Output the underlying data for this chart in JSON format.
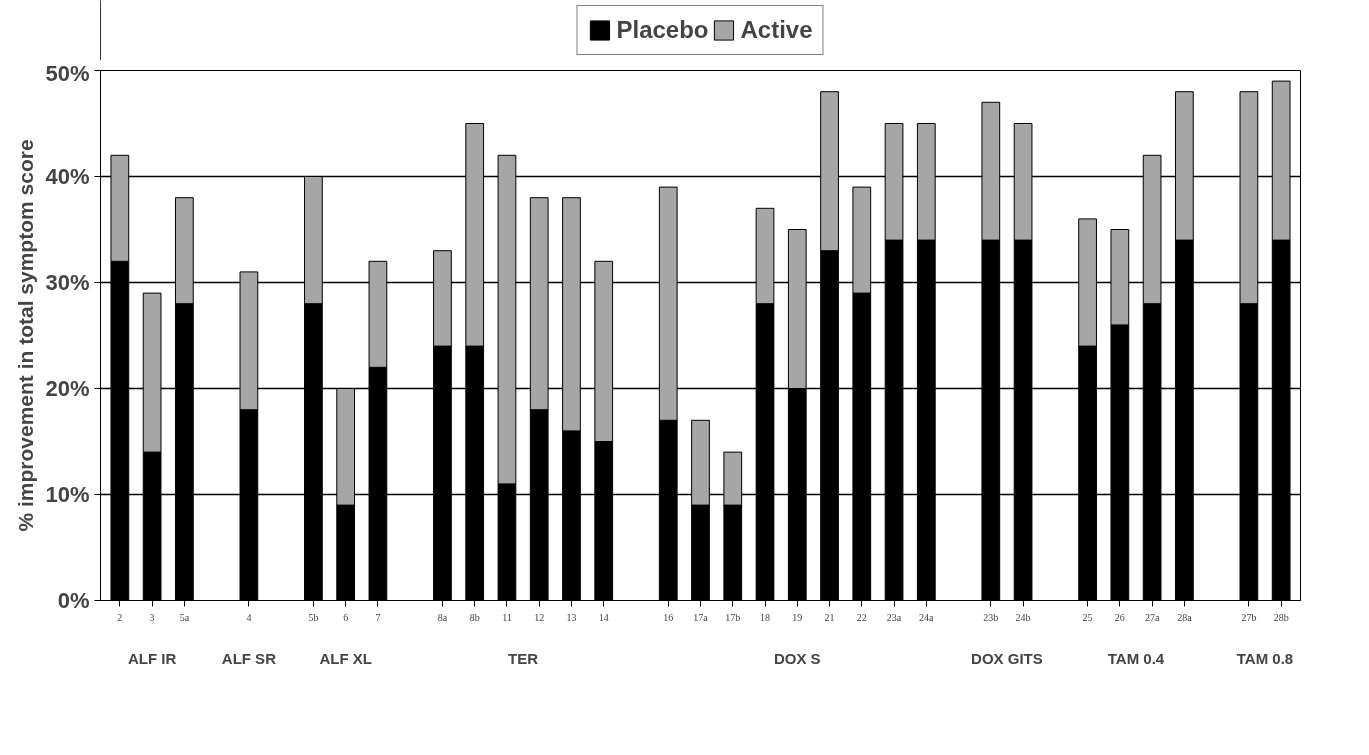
{
  "chart_data": {
    "type": "bar",
    "stacked": true,
    "ylabel": "% improvement in total symptom score",
    "categories": [
      "2",
      "3",
      "5a",
      null,
      "4",
      null,
      "5b",
      "6",
      "7",
      null,
      "8a",
      "8b",
      "11",
      "12",
      "13",
      "14",
      null,
      "16",
      "17a",
      "17b",
      "18",
      "19",
      "21",
      "22",
      "23a",
      "24a",
      null,
      "23b",
      "24b",
      null,
      "25",
      "26",
      "27a",
      "28a",
      null,
      "27b",
      "28b"
    ],
    "series": [
      {
        "name": "Placebo",
        "color": "#000000",
        "values": [
          32,
          14,
          28,
          null,
          18,
          null,
          28,
          9,
          22,
          null,
          24,
          24,
          11,
          18,
          16,
          15,
          null,
          17,
          9,
          9,
          28,
          20,
          33,
          29,
          34,
          34,
          null,
          34,
          34,
          null,
          24,
          26,
          28,
          34,
          null,
          28,
          34
        ]
      },
      {
        "name": "Active",
        "color": "#a6a6a6",
        "values": [
          10,
          15,
          10,
          null,
          13,
          null,
          12,
          11,
          10,
          null,
          9,
          21,
          31,
          20,
          22,
          17,
          null,
          22,
          8,
          5,
          9,
          15,
          15,
          10,
          11,
          11,
          null,
          13,
          11,
          null,
          12,
          9,
          14,
          14,
          null,
          20,
          15
        ]
      }
    ],
    "ylim": [
      0,
      50
    ],
    "yticks": [
      {
        "value": 0,
        "label": "0%"
      },
      {
        "value": 10,
        "label": "10%"
      },
      {
        "value": 20,
        "label": "20%"
      },
      {
        "value": 30,
        "label": "30%"
      },
      {
        "value": 40,
        "label": "40%"
      },
      {
        "value": 50,
        "label": "50%"
      }
    ],
    "grid": "y",
    "legend": "top",
    "annotations": [
      "ALF IR",
      "ALF SR",
      "ALF XL",
      "TER",
      "DOX S",
      "DOX GITS",
      "TAM 0.4",
      "TAM 0.8"
    ]
  }
}
